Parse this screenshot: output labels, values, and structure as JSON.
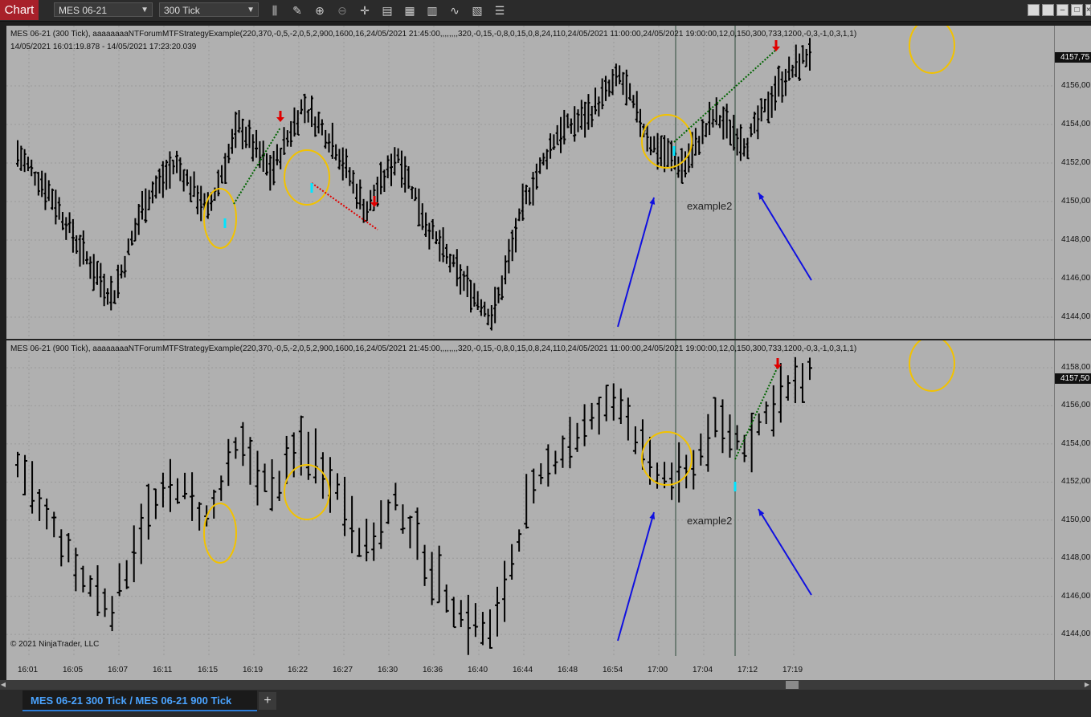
{
  "toolbar": {
    "chart_label": "Chart",
    "instrument": "MES 06-21",
    "interval": "300 Tick",
    "icons": [
      "bar-style-icon",
      "draw-pencil-icon",
      "zoom-in-icon",
      "zoom-out-icon",
      "crosshair-icon",
      "data-box-icon",
      "properties-icon",
      "bar-type-icon",
      "indicators-icon",
      "strategies-icon",
      "menu-icon"
    ]
  },
  "top_panel": {
    "caption": "MES 06-21 (300 Tick), aaaaaaaaNTForumMTFStrategyExample(220,370,-0,5,-2,0,5,2,900,1600,16,24/05/2021 21:45:00,,,,,,,,320,-0,15,-0,8,0,15,0,8,24,110,24/05/2021 11:00:00,24/05/2021 19:00:00,12,0,150,300,733,1200,-0,3,-1,0,3,1,1)",
    "date_range": "14/05/2021 16:01:19.878 - 14/05/2021 17:23:20.039",
    "annotation": "example2",
    "price_tag": "4157,75",
    "y_labels": [
      "4156,00",
      "4154,00",
      "4152,00",
      "4150,00",
      "4148,00",
      "4146,00",
      "4144,00"
    ]
  },
  "bottom_panel": {
    "caption": "MES 06-21 (900 Tick), aaaaaaaaNTForumMTFStrategyExample(220,370,-0,5,-2,0,5,2,900,1600,16,24/05/2021 21:45:00,,,,,,,,320,-0,15,-0,8,0,15,0,8,24,110,24/05/2021 11:00:00,24/05/2021 19:00:00,12,0,150,300,733,1200,-0,3,-1,0,3,1,1)",
    "annotation": "example2",
    "copyright": "© 2021 NinjaTrader, LLC",
    "price_tag": "4157,50",
    "y_labels": [
      "4158,00",
      "4156,00",
      "4154,00",
      "4152,00",
      "4150,00",
      "4148,00",
      "4146,00",
      "4144,00"
    ]
  },
  "x_labels": [
    "16:01",
    "16:05",
    "16:07",
    "16:11",
    "16:15",
    "16:19",
    "16:22",
    "16:27",
    "16:30",
    "16:36",
    "16:40",
    "16:44",
    "16:48",
    "16:54",
    "17:00",
    "17:04",
    "17:12",
    "17:19"
  ],
  "tab": {
    "label": "MES 06-21 300 Tick / MES 06-21 900 Tick",
    "add_label": "+"
  },
  "colors": {
    "chart_bg": "#b0b0b0",
    "bar": "#000000",
    "circle": "#f2c200",
    "arrow_annotation": "#1010e0",
    "long_entry": "#00e5ff",
    "short_signal": "#e00000",
    "win_trade_line": "#006400",
    "loss_trade_line": "#e00000"
  },
  "chart_data": [
    {
      "type": "ohlc",
      "series": [
        {
          "name": "MES 06-21 (300 Tick)"
        }
      ],
      "x": [
        "16:01",
        "16:05",
        "16:07",
        "16:11",
        "16:15",
        "16:19",
        "16:22",
        "16:27",
        "16:30",
        "16:36",
        "16:40",
        "16:44",
        "16:48",
        "16:54",
        "17:00",
        "17:04",
        "17:12",
        "17:19"
      ],
      "price_path": [
        4152.5,
        4150.5,
        4147.5,
        4145.0,
        4150.0,
        4152.0,
        4149.5,
        4154.0,
        4151.5,
        4155.0,
        4153.0,
        4149.5,
        4152.5,
        4148.5,
        4146.0,
        4144.0,
        4150.0,
        4153.5,
        4154.5,
        4156.5,
        4153.0,
        4151.8,
        4154.5,
        4153.0,
        4156.0,
        4157.8
      ],
      "ylim": [
        4143.5,
        4158.5
      ],
      "grid": true
    },
    {
      "type": "ohlc",
      "series": [
        {
          "name": "MES 06-21 (900 Tick)"
        }
      ],
      "x": [
        "16:01",
        "16:05",
        "16:07",
        "16:11",
        "16:15",
        "16:19",
        "16:22",
        "16:27",
        "16:30",
        "16:36",
        "16:40",
        "16:44",
        "16:48",
        "16:54",
        "17:00",
        "17:04",
        "17:12",
        "17:19"
      ],
      "price_path": [
        4152.5,
        4150.0,
        4147.0,
        4145.5,
        4150.0,
        4152.0,
        4150.0,
        4154.0,
        4151.5,
        4154.0,
        4152.0,
        4148.5,
        4151.0,
        4147.5,
        4145.0,
        4144.0,
        4150.5,
        4153.5,
        4155.0,
        4156.5,
        4152.5,
        4152.0,
        4155.0,
        4154.0,
        4156.5,
        4157.5
      ],
      "ylim": [
        4143.5,
        4158.8
      ],
      "grid": true
    }
  ]
}
